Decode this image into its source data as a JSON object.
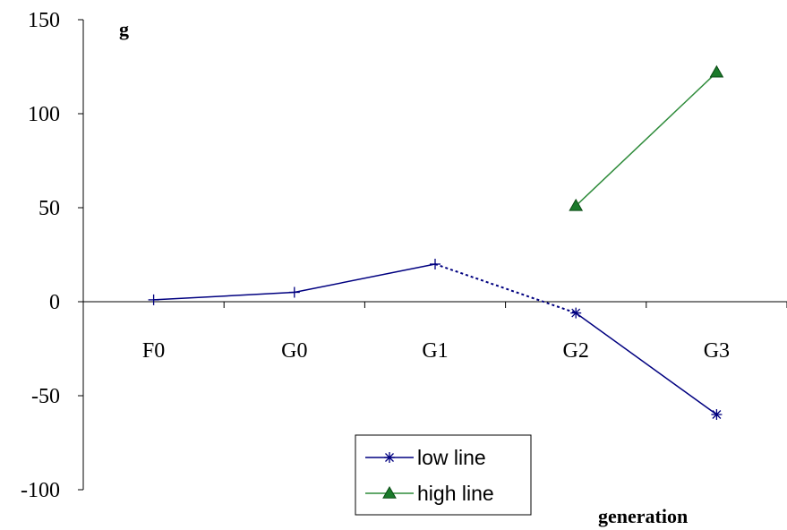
{
  "chart_data": {
    "type": "line",
    "categories": [
      "F0",
      "G0",
      "G1",
      "G2",
      "G3"
    ],
    "ylabel": "g",
    "xlabel": "generation",
    "ylim": [
      -100,
      150
    ],
    "yticks": [
      150,
      100,
      50,
      0,
      -50,
      -100
    ],
    "grid": false,
    "legend_position": "bottom-center",
    "series": [
      {
        "name": "low line",
        "color": "#000080",
        "marker": "asterisk",
        "values": [
          1,
          5,
          20,
          -6,
          -60
        ],
        "dashed_segments": [
          [
            2,
            3
          ]
        ]
      },
      {
        "name": "high line",
        "color": "#2e8b3a",
        "marker": "triangle",
        "marker_fill": "#1a7a2a",
        "values": [
          null,
          null,
          null,
          51,
          122
        ]
      }
    ]
  }
}
